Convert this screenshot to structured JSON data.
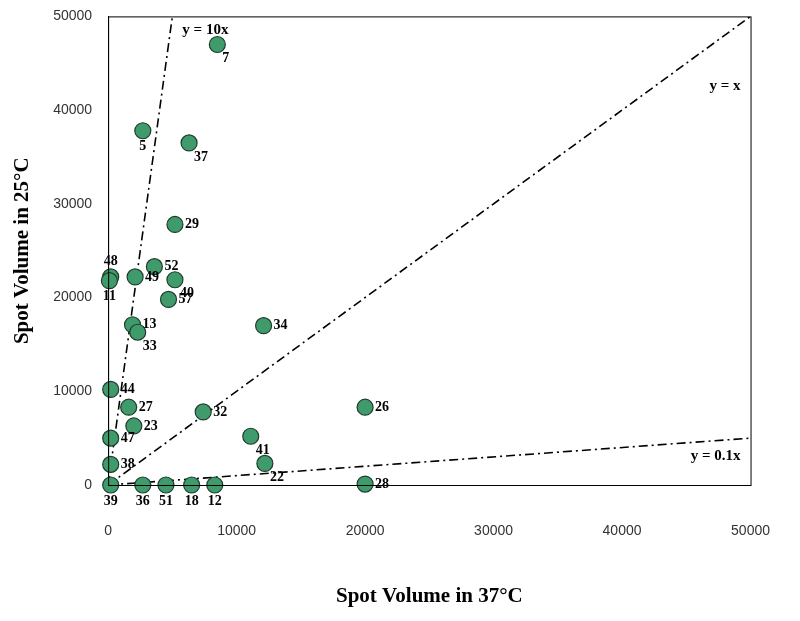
{
  "chart_data": {
    "type": "scatter",
    "x_label": "Spot Volume in 37°C",
    "y_label": "Spot Volume in 25°C",
    "color": "#3f9b6b",
    "marker": "circle",
    "points": [
      {
        "label": "7",
        "x": 8500,
        "y": 47000
      },
      {
        "label": "5",
        "x": 2700,
        "y": 37800
      },
      {
        "label": "37",
        "x": 6300,
        "y": 36500
      },
      {
        "label": "29",
        "x": 5200,
        "y": 27800
      },
      {
        "label": "52",
        "x": 3600,
        "y": 23300
      },
      {
        "label": "40",
        "x": 5200,
        "y": 21900
      },
      {
        "label": "48",
        "x": 200,
        "y": 22200
      },
      {
        "label": "49",
        "x": 2100,
        "y": 22200
      },
      {
        "label": "11",
        "x": 100,
        "y": 21800
      },
      {
        "label": "57",
        "x": 4700,
        "y": 19800
      },
      {
        "label": "13",
        "x": 1900,
        "y": 17100
      },
      {
        "label": "33",
        "x": 2300,
        "y": 16300
      },
      {
        "label": "34",
        "x": 12100,
        "y": 17000
      },
      {
        "label": "44",
        "x": 200,
        "y": 10200
      },
      {
        "label": "27",
        "x": 1600,
        "y": 8300
      },
      {
        "label": "23",
        "x": 2000,
        "y": 6300
      },
      {
        "label": "32",
        "x": 7400,
        "y": 7800
      },
      {
        "label": "26",
        "x": 20000,
        "y": 8300
      },
      {
        "label": "41",
        "x": 11100,
        "y": 5200
      },
      {
        "label": "47",
        "x": 200,
        "y": 5000
      },
      {
        "label": "38",
        "x": 200,
        "y": 2200
      },
      {
        "label": "22",
        "x": 12200,
        "y": 2300
      },
      {
        "label": "28",
        "x": 20000,
        "y": 100
      },
      {
        "label": "39",
        "x": 200,
        "y": 0
      },
      {
        "label": "36",
        "x": 2700,
        "y": 0
      },
      {
        "label": "51",
        "x": 4500,
        "y": 0
      },
      {
        "label": "18",
        "x": 6500,
        "y": 0
      },
      {
        "label": "12",
        "x": 8300,
        "y": 0
      }
    ],
    "reference_lines": [
      {
        "label": "y = 10x",
        "x": [
          0,
          5000
        ],
        "y": [
          0,
          50000
        ]
      },
      {
        "label": "y = x",
        "x": [
          0,
          50000
        ],
        "y": [
          0,
          50000
        ]
      },
      {
        "label": "y = 0.1x",
        "x": [
          0,
          50000
        ],
        "y": [
          0,
          5000
        ]
      }
    ],
    "line_style": "dashdot",
    "xlim": [
      0,
      50000
    ],
    "ylim": [
      0,
      50000
    ],
    "xticks": [
      0,
      10000,
      20000,
      30000,
      40000,
      50000
    ],
    "yticks": [
      0,
      10000,
      20000,
      30000,
      40000,
      50000
    ],
    "grid": false
  }
}
